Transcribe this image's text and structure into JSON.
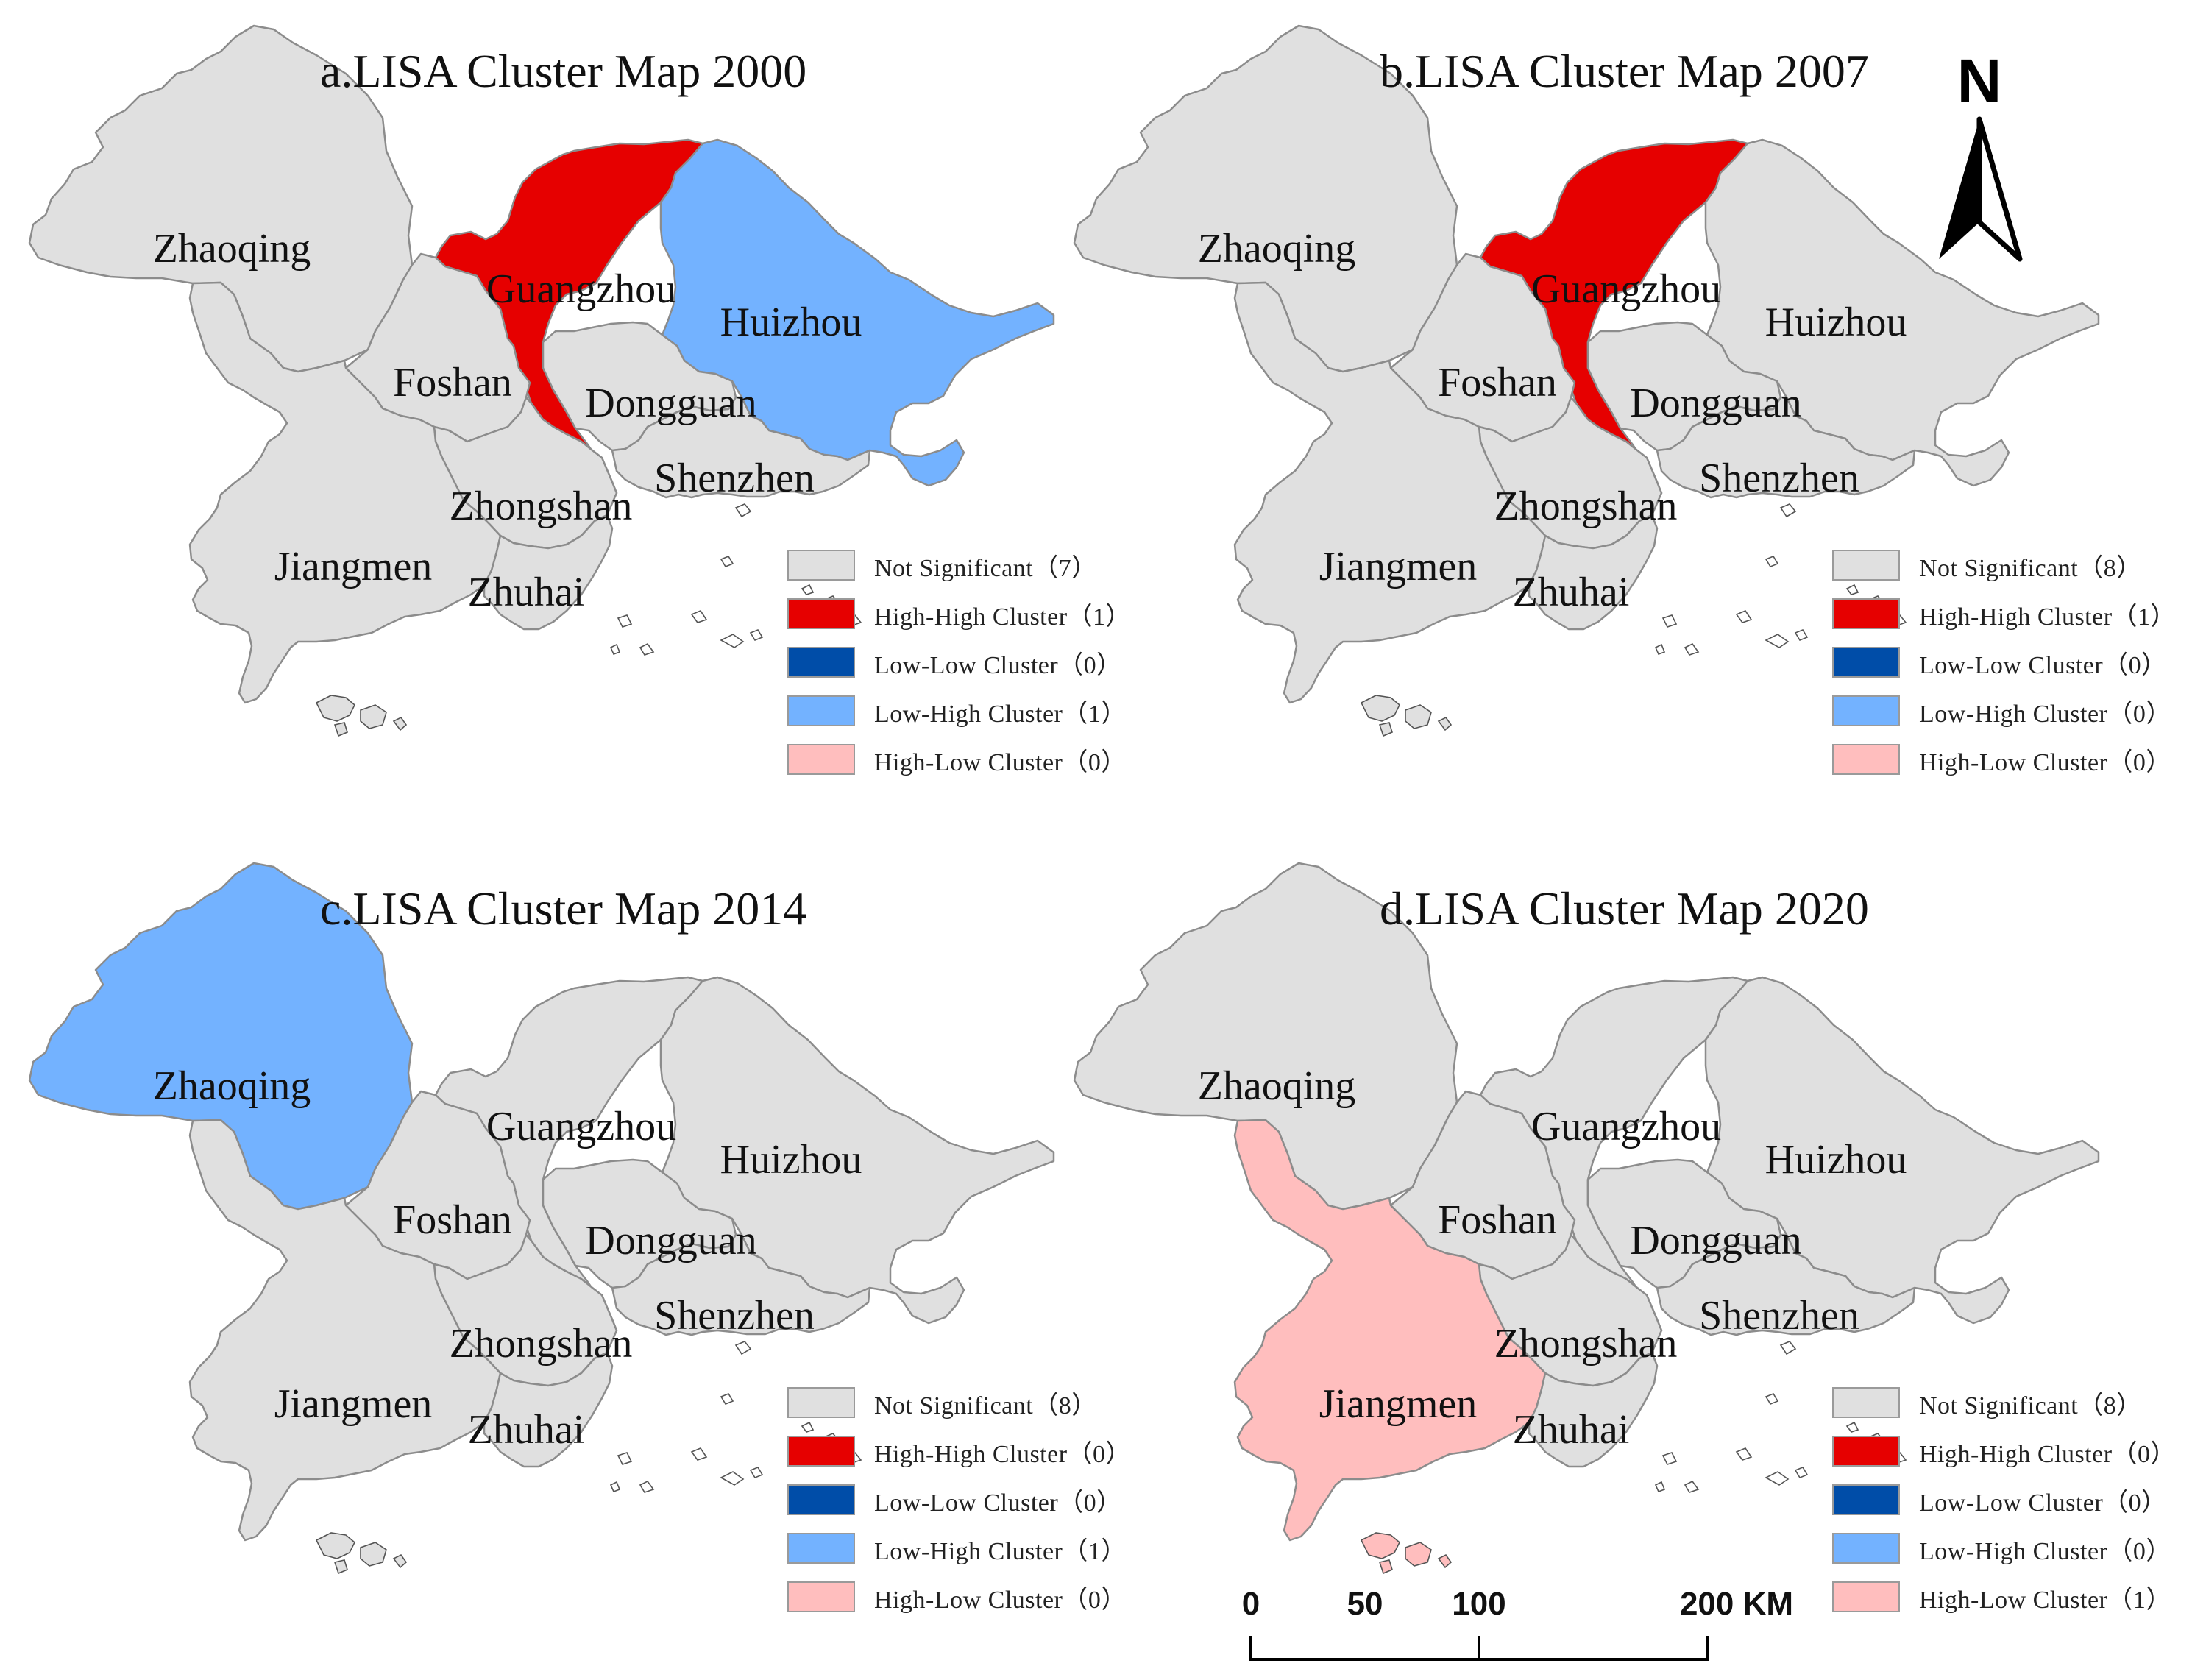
{
  "colors": {
    "not_significant": "#e0e0e0",
    "high_high": "#e60000",
    "low_low": "#004da8",
    "low_high": "#73b2ff",
    "high_low": "#ffbebe",
    "border": "#8c8c8c"
  },
  "panels": [
    {
      "title": "a.LISA Cluster Map 2000",
      "regions": {
        "Zhaoqing": "not_significant",
        "Guangzhou": "high_high",
        "Huizhou": "low_high",
        "Foshan": "not_significant",
        "Dongguan": "not_significant",
        "Shenzhen": "not_significant",
        "Zhongshan": "not_significant",
        "Jiangmen": "not_significant",
        "Zhuhai": "not_significant"
      },
      "legend": [
        {
          "key": "not_significant",
          "label": "Not Significant（7）"
        },
        {
          "key": "high_high",
          "label": "High-High Cluster（1）"
        },
        {
          "key": "low_low",
          "label": "Low-Low Cluster（0）"
        },
        {
          "key": "low_high",
          "label": "Low-High Cluster（1）"
        },
        {
          "key": "high_low",
          "label": "High-Low Cluster（0）"
        }
      ]
    },
    {
      "title": "b.LISA Cluster Map 2007",
      "regions": {
        "Zhaoqing": "not_significant",
        "Guangzhou": "high_high",
        "Huizhou": "not_significant",
        "Foshan": "not_significant",
        "Dongguan": "not_significant",
        "Shenzhen": "not_significant",
        "Zhongshan": "not_significant",
        "Jiangmen": "not_significant",
        "Zhuhai": "not_significant"
      },
      "legend": [
        {
          "key": "not_significant",
          "label": "Not Significant（8）"
        },
        {
          "key": "high_high",
          "label": "High-High Cluster（1）"
        },
        {
          "key": "low_low",
          "label": "Low-Low Cluster（0）"
        },
        {
          "key": "low_high",
          "label": "Low-High Cluster（0）"
        },
        {
          "key": "high_low",
          "label": "High-Low Cluster（0）"
        }
      ]
    },
    {
      "title": "c.LISA Cluster Map 2014",
      "regions": {
        "Zhaoqing": "low_high",
        "Guangzhou": "not_significant",
        "Huizhou": "not_significant",
        "Foshan": "not_significant",
        "Dongguan": "not_significant",
        "Shenzhen": "not_significant",
        "Zhongshan": "not_significant",
        "Jiangmen": "not_significant",
        "Zhuhai": "not_significant"
      },
      "legend": [
        {
          "key": "not_significant",
          "label": "Not Significant（8）"
        },
        {
          "key": "high_high",
          "label": "High-High Cluster（0）"
        },
        {
          "key": "low_low",
          "label": "Low-Low Cluster（0）"
        },
        {
          "key": "low_high",
          "label": "Low-High Cluster（1）"
        },
        {
          "key": "high_low",
          "label": "High-Low Cluster（0）"
        }
      ]
    },
    {
      "title": "d.LISA Cluster Map 2020",
      "regions": {
        "Zhaoqing": "not_significant",
        "Guangzhou": "not_significant",
        "Huizhou": "not_significant",
        "Foshan": "not_significant",
        "Dongguan": "not_significant",
        "Shenzhen": "not_significant",
        "Zhongshan": "not_significant",
        "Jiangmen": "high_low",
        "Zhuhai": "not_significant"
      },
      "legend": [
        {
          "key": "not_significant",
          "label": "Not Significant（8）"
        },
        {
          "key": "high_high",
          "label": "High-High Cluster（0）"
        },
        {
          "key": "low_low",
          "label": "Low-Low Cluster（0）"
        },
        {
          "key": "low_high",
          "label": "Low-High Cluster（0）"
        },
        {
          "key": "high_low",
          "label": "High-Low Cluster（1）"
        }
      ]
    }
  ],
  "city_names": [
    "Zhaoqing",
    "Guangzhou",
    "Huizhou",
    "Foshan",
    "Dongguan",
    "Shenzhen",
    "Zhongshan",
    "Jiangmen",
    "Zhuhai"
  ],
  "north_arrow": {
    "label": "N"
  },
  "scale_bar": {
    "labels": [
      "0",
      "50",
      "100",
      "200 KM"
    ]
  }
}
